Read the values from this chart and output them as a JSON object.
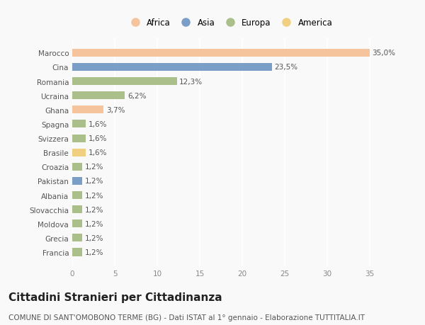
{
  "countries": [
    "Marocco",
    "Cina",
    "Romania",
    "Ucraina",
    "Ghana",
    "Spagna",
    "Svizzera",
    "Brasile",
    "Croazia",
    "Pakistan",
    "Albania",
    "Slovacchia",
    "Moldova",
    "Grecia",
    "Francia"
  ],
  "values": [
    35.0,
    23.5,
    12.3,
    6.2,
    3.7,
    1.6,
    1.6,
    1.6,
    1.2,
    1.2,
    1.2,
    1.2,
    1.2,
    1.2,
    1.2
  ],
  "labels": [
    "35,0%",
    "23,5%",
    "12,3%",
    "6,2%",
    "3,7%",
    "1,6%",
    "1,6%",
    "1,6%",
    "1,2%",
    "1,2%",
    "1,2%",
    "1,2%",
    "1,2%",
    "1,2%",
    "1,2%"
  ],
  "continents": [
    "Africa",
    "Asia",
    "Europa",
    "Europa",
    "Africa",
    "Europa",
    "Europa",
    "America",
    "Europa",
    "Asia",
    "Europa",
    "Europa",
    "Europa",
    "Europa",
    "Europa"
  ],
  "colors": {
    "Africa": "#F5C49C",
    "Asia": "#7A9EC5",
    "Europa": "#AABF8A",
    "America": "#F0D080"
  },
  "legend_order": [
    "Africa",
    "Asia",
    "Europa",
    "America"
  ],
  "xlim": [
    0,
    37
  ],
  "xticks": [
    0,
    5,
    10,
    15,
    20,
    25,
    30,
    35
  ],
  "title": "Cittadini Stranieri per Cittadinanza",
  "subtitle": "COMUNE DI SANT'OMOBONO TERME (BG) - Dati ISTAT al 1° gennaio - Elaborazione TUTTITALIA.IT",
  "bg_color": "#f9f9f9",
  "bar_height": 0.55,
  "grid_color": "#ffffff",
  "label_fontsize": 7.5,
  "tick_fontsize": 7.5,
  "title_fontsize": 11,
  "subtitle_fontsize": 7.5
}
